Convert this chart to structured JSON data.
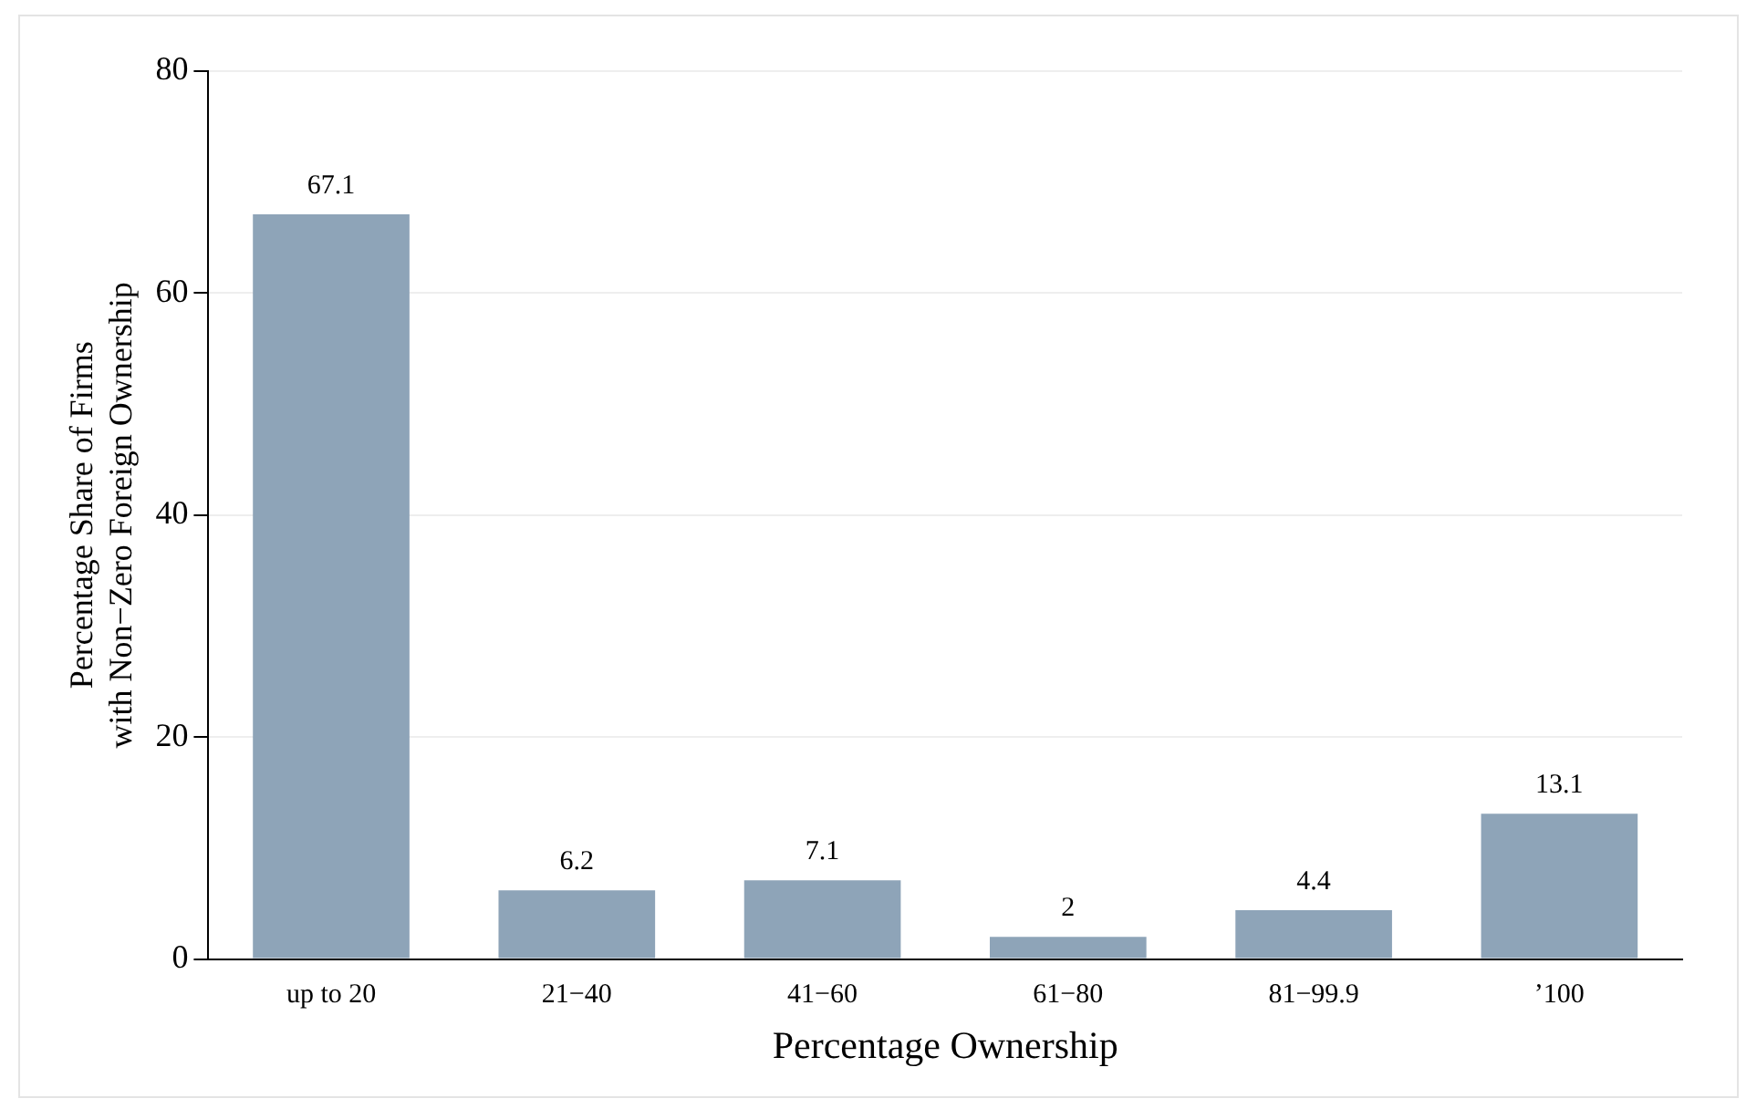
{
  "chart_data": {
    "type": "bar",
    "categories": [
      "up to 20",
      "21−40",
      "41−60",
      "61−80",
      "81−99.9",
      "’100"
    ],
    "values": [
      67.1,
      6.2,
      7.1,
      2,
      4.4,
      13.1
    ],
    "color": "#8ea4b8",
    "xlabel": "Percentage Ownership",
    "ylabel": "Percentage Share of Firms\nwith Non−Zero Foreign Ownership",
    "ylim": [
      0,
      80
    ],
    "yticks": [
      0,
      20,
      40,
      60,
      80
    ],
    "grid": "y",
    "legend": false,
    "data_labels": true
  }
}
